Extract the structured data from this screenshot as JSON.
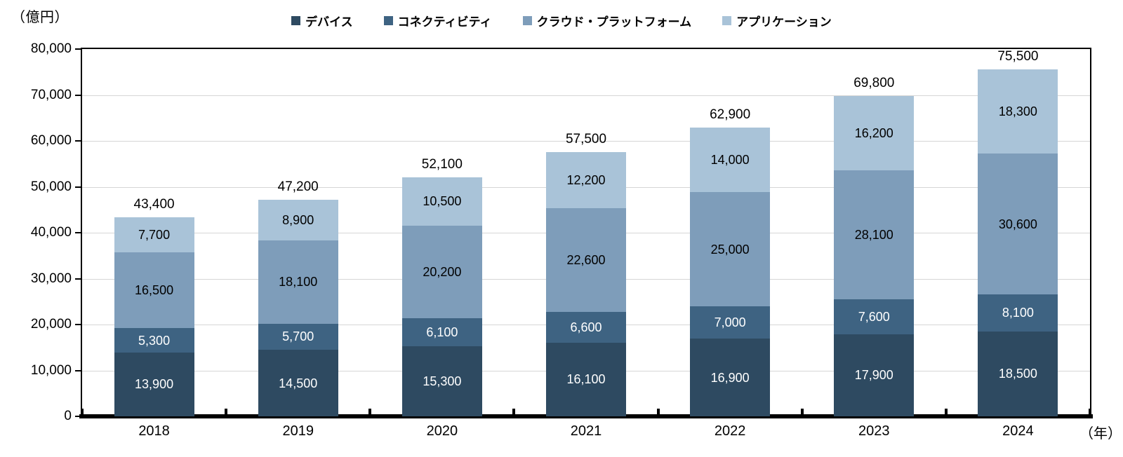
{
  "chart_data": {
    "type": "bar",
    "stacked": true,
    "title": "",
    "y_unit_label": "（億円）",
    "x_unit_label": "（年）",
    "categories": [
      "2018",
      "2019",
      "2020",
      "2021",
      "2022",
      "2023",
      "2024"
    ],
    "series": [
      {
        "name": "デバイス",
        "color": "#2E4A61",
        "label_color": "#ffffff",
        "values": [
          13900,
          14500,
          15300,
          16100,
          16900,
          17900,
          18500
        ]
      },
      {
        "name": "コネクティビティ",
        "color": "#3E6382",
        "label_color": "#ffffff",
        "values": [
          5300,
          5700,
          6100,
          6600,
          7000,
          7600,
          8100
        ]
      },
      {
        "name": "クラウド・プラットフォーム",
        "color": "#7E9DBA",
        "label_color": "#000000",
        "values": [
          16500,
          18100,
          20200,
          22600,
          25000,
          28100,
          30600
        ]
      },
      {
        "name": "アプリケーション",
        "color": "#A9C3D8",
        "label_color": "#000000",
        "values": [
          7700,
          8900,
          10500,
          12200,
          14000,
          16200,
          18300
        ]
      }
    ],
    "totals": [
      43400,
      47200,
      52100,
      57500,
      62900,
      69800,
      75500
    ],
    "ylim": [
      0,
      80000
    ],
    "ytick_step": 10000,
    "ytick_labels": [
      "0",
      "10,000",
      "20,000",
      "30,000",
      "40,000",
      "50,000",
      "60,000",
      "70,000",
      "80,000"
    ],
    "grid": true,
    "legend_position": "top"
  }
}
